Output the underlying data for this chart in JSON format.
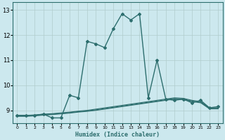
{
  "xlabel": "Humidex (Indice chaleur)",
  "background_color": "#cce8ee",
  "grid_color": "#b0cccc",
  "line_color": "#2d6e6e",
  "xlim": [
    -0.5,
    23.5
  ],
  "ylim": [
    8.5,
    13.3
  ],
  "yticks": [
    9,
    10,
    11,
    12,
    13
  ],
  "xticks": [
    0,
    1,
    2,
    3,
    4,
    5,
    6,
    7,
    8,
    9,
    10,
    11,
    12,
    13,
    14,
    15,
    16,
    17,
    18,
    19,
    20,
    21,
    22,
    23
  ],
  "main_x": [
    0,
    1,
    2,
    3,
    4,
    5,
    6,
    7,
    8,
    9,
    10,
    11,
    12,
    13,
    14,
    15,
    16,
    17,
    18,
    19,
    20,
    21,
    22,
    23
  ],
  "main_y": [
    8.8,
    8.8,
    8.8,
    8.85,
    8.7,
    8.7,
    9.6,
    9.5,
    11.75,
    11.65,
    11.5,
    12.25,
    12.85,
    12.6,
    12.85,
    9.5,
    11.0,
    9.45,
    9.4,
    9.45,
    9.3,
    9.4,
    9.1,
    9.15
  ],
  "flat1_x": [
    0,
    1,
    2,
    3,
    4,
    5,
    6,
    7,
    8,
    9,
    10,
    11,
    12,
    13,
    14,
    15,
    16,
    17,
    18,
    19,
    20,
    21,
    22,
    23
  ],
  "flat1_y": [
    8.8,
    8.8,
    8.82,
    8.85,
    8.87,
    8.9,
    8.93,
    8.97,
    9.0,
    9.05,
    9.1,
    9.15,
    9.2,
    9.25,
    9.3,
    9.35,
    9.4,
    9.45,
    9.5,
    9.48,
    9.4,
    9.35,
    9.1,
    9.1
  ],
  "flat2_x": [
    0,
    1,
    2,
    3,
    4,
    5,
    6,
    7,
    8,
    9,
    10,
    11,
    12,
    13,
    14,
    15,
    16,
    17,
    18,
    19,
    20,
    21,
    22,
    23
  ],
  "flat2_y": [
    8.78,
    8.78,
    8.8,
    8.83,
    8.85,
    8.88,
    8.91,
    8.95,
    8.98,
    9.02,
    9.07,
    9.12,
    9.17,
    9.22,
    9.27,
    9.32,
    9.37,
    9.42,
    9.47,
    9.45,
    9.37,
    9.32,
    9.08,
    9.08
  ],
  "flat3_x": [
    0,
    1,
    2,
    3,
    4,
    5,
    6,
    7,
    8,
    9,
    10,
    11,
    12,
    13,
    14,
    15,
    16,
    17,
    18,
    19,
    20,
    21,
    22,
    23
  ],
  "flat3_y": [
    8.76,
    8.76,
    8.78,
    8.81,
    8.83,
    8.86,
    8.89,
    8.93,
    8.96,
    9.0,
    9.05,
    9.1,
    9.15,
    9.2,
    9.25,
    9.3,
    9.35,
    9.4,
    9.45,
    9.43,
    9.35,
    9.3,
    9.06,
    9.06
  ]
}
